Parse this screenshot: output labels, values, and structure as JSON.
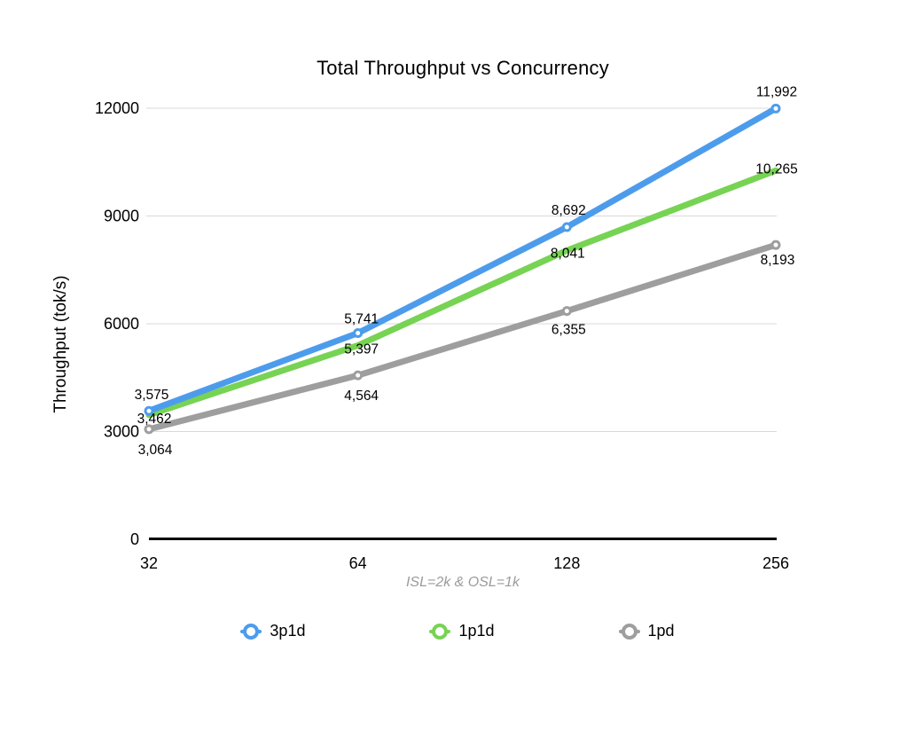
{
  "page": {
    "background": "#ffffff"
  },
  "chart_data": {
    "type": "line",
    "title": "Total Throughput vs Concurrency",
    "ylabel": "Throughput (tok/s)",
    "xlabel": "",
    "caption": "ISL=2k & OSL=1k",
    "categories": [
      "32",
      "64",
      "128",
      "256"
    ],
    "ylim": [
      0,
      12000
    ],
    "y_ticks": [
      0,
      3000,
      6000,
      9000,
      12000
    ],
    "y_tick_labels": [
      "0",
      "3000",
      "6000",
      "9000",
      "12000"
    ],
    "grid": "horizontal",
    "legend_position": "bottom",
    "series": [
      {
        "name": "3p1d",
        "color": "#4D9CEC",
        "marker": true,
        "values": [
          3575,
          5741,
          8692,
          11992
        ],
        "labels": [
          "3,575",
          "5,741",
          "8,692",
          "11,992"
        ]
      },
      {
        "name": "1p1d",
        "color": "#77D353",
        "marker": false,
        "values": [
          3462,
          5397,
          8041,
          10265
        ],
        "labels": [
          "3,462",
          "5,397",
          "8,041",
          "10,265"
        ]
      },
      {
        "name": "1pd",
        "color": "#9E9E9E",
        "marker": true,
        "values": [
          3064,
          4564,
          6355,
          8193
        ],
        "labels": [
          "3,064",
          "4,564",
          "6,355",
          "8,193"
        ]
      }
    ],
    "colors": {
      "gridline": "#D9D9D9",
      "axis": "#000000",
      "caption": "#9B9B9B",
      "label": "#000000",
      "marker_fill": "#FFFFFF"
    }
  }
}
